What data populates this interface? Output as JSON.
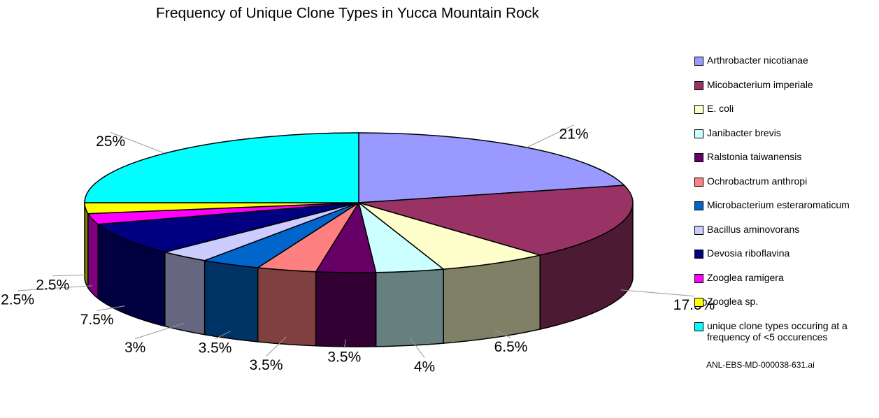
{
  "chart_data": {
    "type": "pie3d",
    "title": "Frequency of Unique Clone Types in Yucca Mountain Rock",
    "categories": [
      "Arthrobacter nicotianae",
      "Micobacterium imperiale",
      "E. coli",
      "Janibacter brevis",
      "Ralstonia taiwanensis",
      "Ochrobactrum anthropi",
      "Microbacterium esteraromaticum",
      "Bacillus aminovorans",
      "Devosia riboflavina",
      "Zooglea ramigera",
      "Zooglea sp.",
      "unique clone types occuring at a frequency of <5 occurences"
    ],
    "values": [
      21,
      17.5,
      6.5,
      4,
      3.5,
      3.5,
      3.5,
      3,
      7.5,
      2.5,
      2.5,
      25
    ],
    "value_labels": [
      "21%",
      "17.5%",
      "6.5%",
      "4%",
      "3.5%",
      "3.5%",
      "3.5%",
      "3%",
      "7.5%",
      "2.5%",
      "2.5%",
      "25%"
    ],
    "colors": [
      "#9999ff",
      "#993366",
      "#ffffcc",
      "#ccffff",
      "#660066",
      "#ff8080",
      "#0066cc",
      "#ccccff",
      "#000080",
      "#ff00ff",
      "#ffff00",
      "#00ffff"
    ],
    "legend": "right",
    "footnote": "ANL-EBS-MD-000038-631.ai"
  }
}
